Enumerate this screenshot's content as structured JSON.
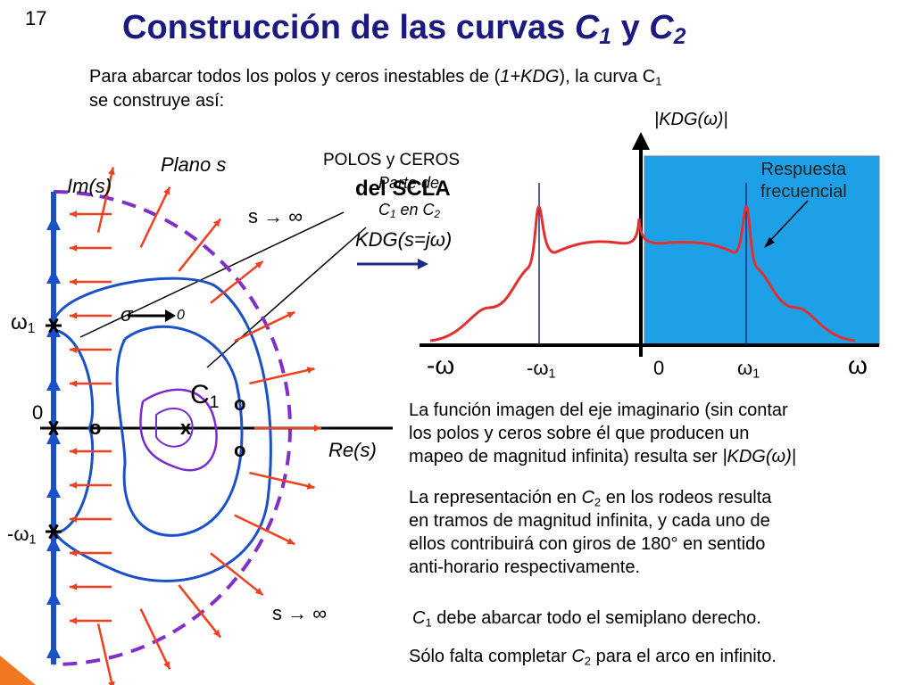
{
  "page_number": "17",
  "title": [
    "Construcción de las curvas ",
    "C",
    "1",
    " y ",
    "C",
    "2"
  ],
  "intro": {
    "line1": [
      "Para abarcar todos los polos y ceros inestables de (",
      "1+KDG",
      "), la curva C",
      "1"
    ],
    "line2": "se construye así:"
  },
  "s_plane": {
    "plane_label": "Plano s",
    "im_axis": "Im(s)",
    "re_axis": "Re(s)",
    "s_inf_top": "s → ∞",
    "s_inf_bottom": "s → ∞",
    "sigma": "σ",
    "sigma_zero": "0",
    "omega1": [
      "ω",
      "1"
    ],
    "origin": "0",
    "minus_omega1": [
      "-ω",
      "1"
    ],
    "contour": [
      "C",
      "1"
    ],
    "zero_top": "o",
    "pole": "x",
    "zero_bottom": "o",
    "zero_axis": "o"
  },
  "mapping": {
    "poles_zeros": [
      "POLOS y CEROS",
      "del SCLA"
    ],
    "part_of": [
      "Parte de",
      "C",
      "1",
      " en C",
      "2"
    ],
    "kdg": "KDG(s=jω)"
  },
  "frequency_plot": {
    "y_label": "|KDG(ω)|",
    "annotation": [
      "Respuesta",
      "frecuencial"
    ],
    "x_labels": [
      {
        "text": "-ω"
      },
      {
        "text": "-ω",
        "sub": "1"
      },
      {
        "text": "0"
      },
      {
        "text": "ω",
        "sub": "1"
      },
      {
        "text": "ω"
      }
    ]
  },
  "notes": {
    "p1": {
      "lines": [
        "La función imagen del eje imaginario (sin contar",
        "los polos y ceros sobre él que producen un",
        "mapeo de magnitud infinita) resulta ser "
      ],
      "tail": "|KDG(ω)|"
    },
    "p2": {
      "line1": [
        "La representación en ",
        "C",
        "2",
        " en los rodeos resulta"
      ],
      "rest": [
        "en tramos de magnitud infinita, y cada uno de",
        "ellos contribuirá con giros de 180° en sentido",
        "anti-horario respectivamente."
      ]
    },
    "p3": [
      "C",
      "1",
      " debe abarcar todo el semiplano derecho."
    ],
    "p4": [
      "Sólo falta completar ",
      "C",
      "2",
      " para el arco en infinito."
    ]
  }
}
